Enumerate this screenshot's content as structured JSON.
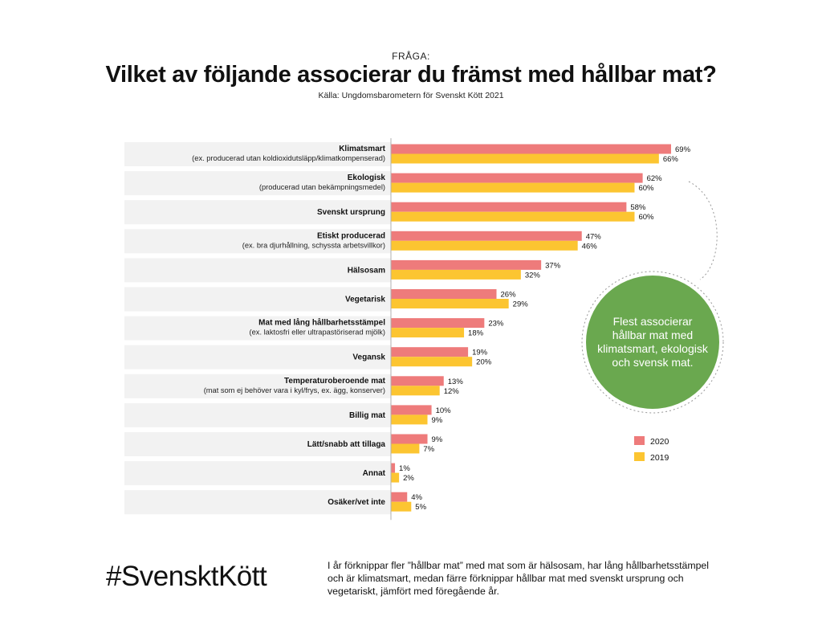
{
  "header": {
    "kicker": "FRÅGA:",
    "title": "Vilket av följande associerar du främst med hållbar mat?",
    "source": "Källa: Ungdomsbarometern för Svenskt Kött 2021"
  },
  "chart_data": {
    "type": "bar",
    "orientation": "horizontal",
    "categories": [
      {
        "name": "Klimatsmart",
        "sub": "(ex. producerad utan koldioxidutsläpp/klimatkompenserad)"
      },
      {
        "name": "Ekologisk",
        "sub": "(producerad utan bekämpningsmedel)"
      },
      {
        "name": "Svenskt ursprung",
        "sub": ""
      },
      {
        "name": "Etiskt producerad",
        "sub": "(ex. bra djurhållning, schyssta arbetsvillkor)"
      },
      {
        "name": "Hälsosam",
        "sub": ""
      },
      {
        "name": "Vegetarisk",
        "sub": ""
      },
      {
        "name": "Mat med lång hållbarhetsstämpel",
        "sub": "(ex. laktosfri eller ultrapastöriserad mjölk)"
      },
      {
        "name": "Vegansk",
        "sub": ""
      },
      {
        "name": "Temperaturoberoende mat",
        "sub": "(mat som ej behöver vara i kyl/frys, ex. ägg, konserver)"
      },
      {
        "name": "Billig mat",
        "sub": ""
      },
      {
        "name": "Lätt/snabb att tillaga",
        "sub": ""
      },
      {
        "name": "Annat",
        "sub": ""
      },
      {
        "name": "Osäker/vet inte",
        "sub": ""
      }
    ],
    "series": [
      {
        "name": "2020",
        "color": "#ee7b7b",
        "values": [
          69,
          62,
          58,
          47,
          37,
          26,
          23,
          19,
          13,
          10,
          9,
          1,
          4
        ]
      },
      {
        "name": "2019",
        "color": "#fcc531",
        "values": [
          66,
          60,
          60,
          46,
          32,
          29,
          18,
          20,
          12,
          9,
          7,
          2,
          5
        ]
      }
    ],
    "value_suffix": "%",
    "xlim": [
      0,
      69
    ],
    "legend_position": "right",
    "grid": false
  },
  "callout": {
    "text": "Flest associerar hållbar mat med klimatsmart, ekologisk och svensk mat.",
    "color": "#6aa84f"
  },
  "footer": {
    "hashtag": "#SvensktKött",
    "text": "I år förknippar fler ”hållbar mat” med mat som är hälsosam, har lång hållbarhetsstämpel och är klimatsmart, medan färre förknippar hållbar mat med svenskt ursprung och vegetariskt, jämfört med föregående år."
  }
}
